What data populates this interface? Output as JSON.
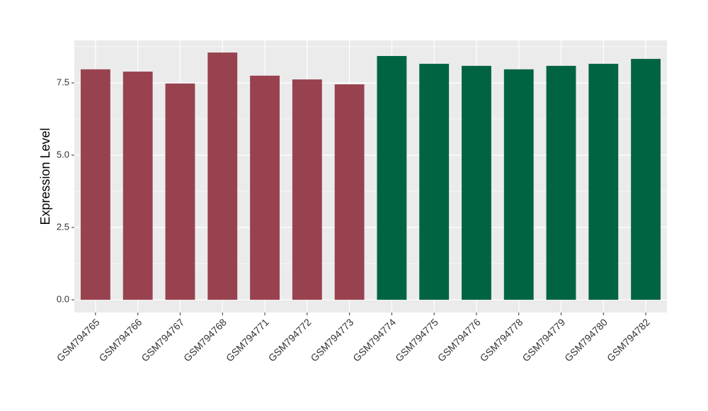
{
  "chart_data": {
    "type": "bar",
    "y_label": "Expression Level",
    "categories": [
      "GSM794765",
      "GSM794766",
      "GSM794767",
      "GSM794768",
      "GSM794771",
      "GSM794772",
      "GSM794773",
      "GSM794774",
      "GSM794775",
      "GSM794776",
      "GSM794778",
      "GSM794779",
      "GSM794780",
      "GSM794782"
    ],
    "values": [
      7.97,
      7.89,
      7.48,
      8.55,
      7.75,
      7.62,
      7.45,
      8.43,
      8.16,
      8.09,
      7.97,
      8.09,
      8.16,
      8.33
    ],
    "colors": [
      "#99424f",
      "#99424f",
      "#99424f",
      "#99424f",
      "#99424f",
      "#99424f",
      "#99424f",
      "#006442",
      "#006442",
      "#006442",
      "#006442",
      "#006442",
      "#006442",
      "#006442"
    ],
    "ylim": [
      -0.44,
      8.97
    ],
    "yticks": [
      {
        "value": 0,
        "label": "0.0"
      },
      2.5,
      {
        "value": 5,
        "label": "5.0"
      },
      7.5
    ],
    "grid": true
  }
}
